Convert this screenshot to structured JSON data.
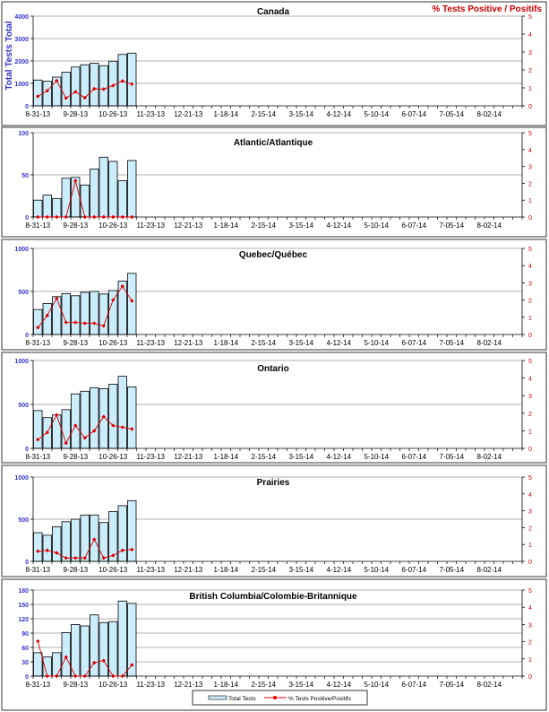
{
  "colors": {
    "bar": "#cceefc",
    "line": "#dd0000",
    "left_axis": "#3333cc",
    "right_axis": "#cc0000"
  },
  "y_axis_label": "Total Tests Total",
  "y2_axis_label": "% Tests Positive / Positifs",
  "legend": {
    "bars": "Total Tests",
    "line": "% Tests Positive/Positifs"
  },
  "chart_data": [
    {
      "type": "bar+line",
      "title": "Canada",
      "x_ticks": [
        "8-31-13",
        "9-28-13",
        "10-26-13",
        "11-23-13",
        "12-21-13",
        "1-18-14",
        "2-15-14",
        "3-15-14",
        "4-12-14",
        "5-10-14",
        "6-07-14",
        "7-05-14",
        "8-02-14"
      ],
      "weeks": 52,
      "ylim": [
        0,
        4000
      ],
      "yticks": [
        0,
        1000,
        2000,
        3000,
        4000
      ],
      "y2lim": [
        0,
        5
      ],
      "y2ticks": [
        0,
        1,
        2,
        3,
        4,
        5
      ],
      "total_tests": [
        1150,
        1100,
        1280,
        1500,
        1730,
        1830,
        1900,
        1790,
        1990,
        2290,
        2350
      ],
      "pct_positive": [
        0.53,
        0.84,
        1.4,
        0.43,
        0.78,
        0.45,
        0.95,
        0.93,
        1.13,
        1.38,
        1.21
      ]
    },
    {
      "type": "bar+line",
      "title": "Atlantic/Atlantique",
      "x_ticks": [
        "8-31-13",
        "9-28-13",
        "10-26-13",
        "11-23-13",
        "12-21-13",
        "1-18-14",
        "2-15-14",
        "3-15-14",
        "4-12-14",
        "5-10-14",
        "6-07-14",
        "7-05-14",
        "8-02-14"
      ],
      "weeks": 52,
      "ylim": [
        0,
        100
      ],
      "yticks": [
        0,
        50,
        100
      ],
      "y2lim": [
        0,
        5
      ],
      "y2ticks": [
        0,
        1,
        2,
        3,
        4,
        5
      ],
      "total_tests": [
        20,
        26,
        22,
        46,
        47,
        38,
        57,
        71,
        66,
        43,
        67
      ],
      "pct_positive": [
        0,
        0,
        0,
        0,
        2.15,
        0,
        0,
        0,
        0,
        0,
        0
      ]
    },
    {
      "type": "bar+line",
      "title": "Quebec/Québec",
      "x_ticks": [
        "8-31-13",
        "9-28-13",
        "10-26-13",
        "11-23-13",
        "12-21-13",
        "1-18-14",
        "2-15-14",
        "3-15-14",
        "4-12-14",
        "5-10-14",
        "6-07-14",
        "7-05-14",
        "8-02-14"
      ],
      "weeks": 52,
      "ylim": [
        0,
        1000
      ],
      "yticks": [
        0,
        500,
        1000
      ],
      "y2lim": [
        0,
        5
      ],
      "y2ticks": [
        0,
        1,
        2,
        3,
        4,
        5
      ],
      "total_tests": [
        290,
        360,
        440,
        475,
        450,
        490,
        500,
        470,
        510,
        620,
        710
      ],
      "pct_positive": [
        0.4,
        1.1,
        2.1,
        0.7,
        0.7,
        0.65,
        0.65,
        0.5,
        2.0,
        2.8,
        1.95
      ]
    },
    {
      "type": "bar+line",
      "title": "Ontario",
      "x_ticks": [
        "8-31-13",
        "9-28-13",
        "10-26-13",
        "11-23-13",
        "12-21-13",
        "1-18-14",
        "2-15-14",
        "3-15-14",
        "4-12-14",
        "5-10-14",
        "6-07-14",
        "7-05-14",
        "8-02-14"
      ],
      "weeks": 52,
      "ylim": [
        0,
        1000
      ],
      "yticks": [
        0,
        500,
        1000
      ],
      "y2lim": [
        0,
        5
      ],
      "y2ticks": [
        0,
        1,
        2,
        3,
        4,
        5
      ],
      "total_tests": [
        430,
        350,
        380,
        440,
        620,
        650,
        690,
        680,
        730,
        820,
        700
      ],
      "pct_positive": [
        0.5,
        0.9,
        1.9,
        0.3,
        1.3,
        0.6,
        1.0,
        1.8,
        1.3,
        1.2,
        1.1
      ]
    },
    {
      "type": "bar+line",
      "title": "Prairies",
      "x_ticks": [
        "8-31-13",
        "9-28-13",
        "10-26-13",
        "11-23-13",
        "12-21-13",
        "1-18-14",
        "2-15-14",
        "3-15-14",
        "4-12-14",
        "5-10-14",
        "6-07-14",
        "7-05-14",
        "8-02-14"
      ],
      "weeks": 52,
      "ylim": [
        0,
        1000
      ],
      "yticks": [
        0,
        500,
        1000
      ],
      "y2lim": [
        0,
        5
      ],
      "y2ticks": [
        0,
        1,
        2,
        3,
        4,
        5
      ],
      "total_tests": [
        340,
        310,
        410,
        470,
        500,
        550,
        550,
        460,
        590,
        660,
        720
      ],
      "pct_positive": [
        0.6,
        0.65,
        0.5,
        0.2,
        0.2,
        0.2,
        1.3,
        0.2,
        0.35,
        0.65,
        0.7
      ]
    },
    {
      "type": "bar+line",
      "title": "British Columbia/Colombie-Britannique",
      "x_ticks": [
        "8-31-13",
        "9-28-13",
        "10-26-13",
        "11-23-13",
        "12-21-13",
        "1-18-14",
        "2-15-14",
        "3-15-14",
        "4-12-14",
        "5-10-14",
        "6-07-14",
        "7-05-14",
        "8-02-14"
      ],
      "weeks": 52,
      "ylim": [
        0,
        180
      ],
      "yticks": [
        0,
        30,
        60,
        90,
        120,
        150,
        180
      ],
      "y2lim": [
        0,
        5
      ],
      "y2ticks": [
        0,
        1,
        2,
        3,
        4,
        5
      ],
      "total_tests": [
        49,
        40,
        49,
        91,
        108,
        105,
        128,
        112,
        114,
        157,
        152
      ],
      "pct_positive": [
        2.03,
        0,
        0,
        1.1,
        0,
        0,
        0.78,
        0.9,
        0,
        0,
        0.65
      ]
    }
  ]
}
